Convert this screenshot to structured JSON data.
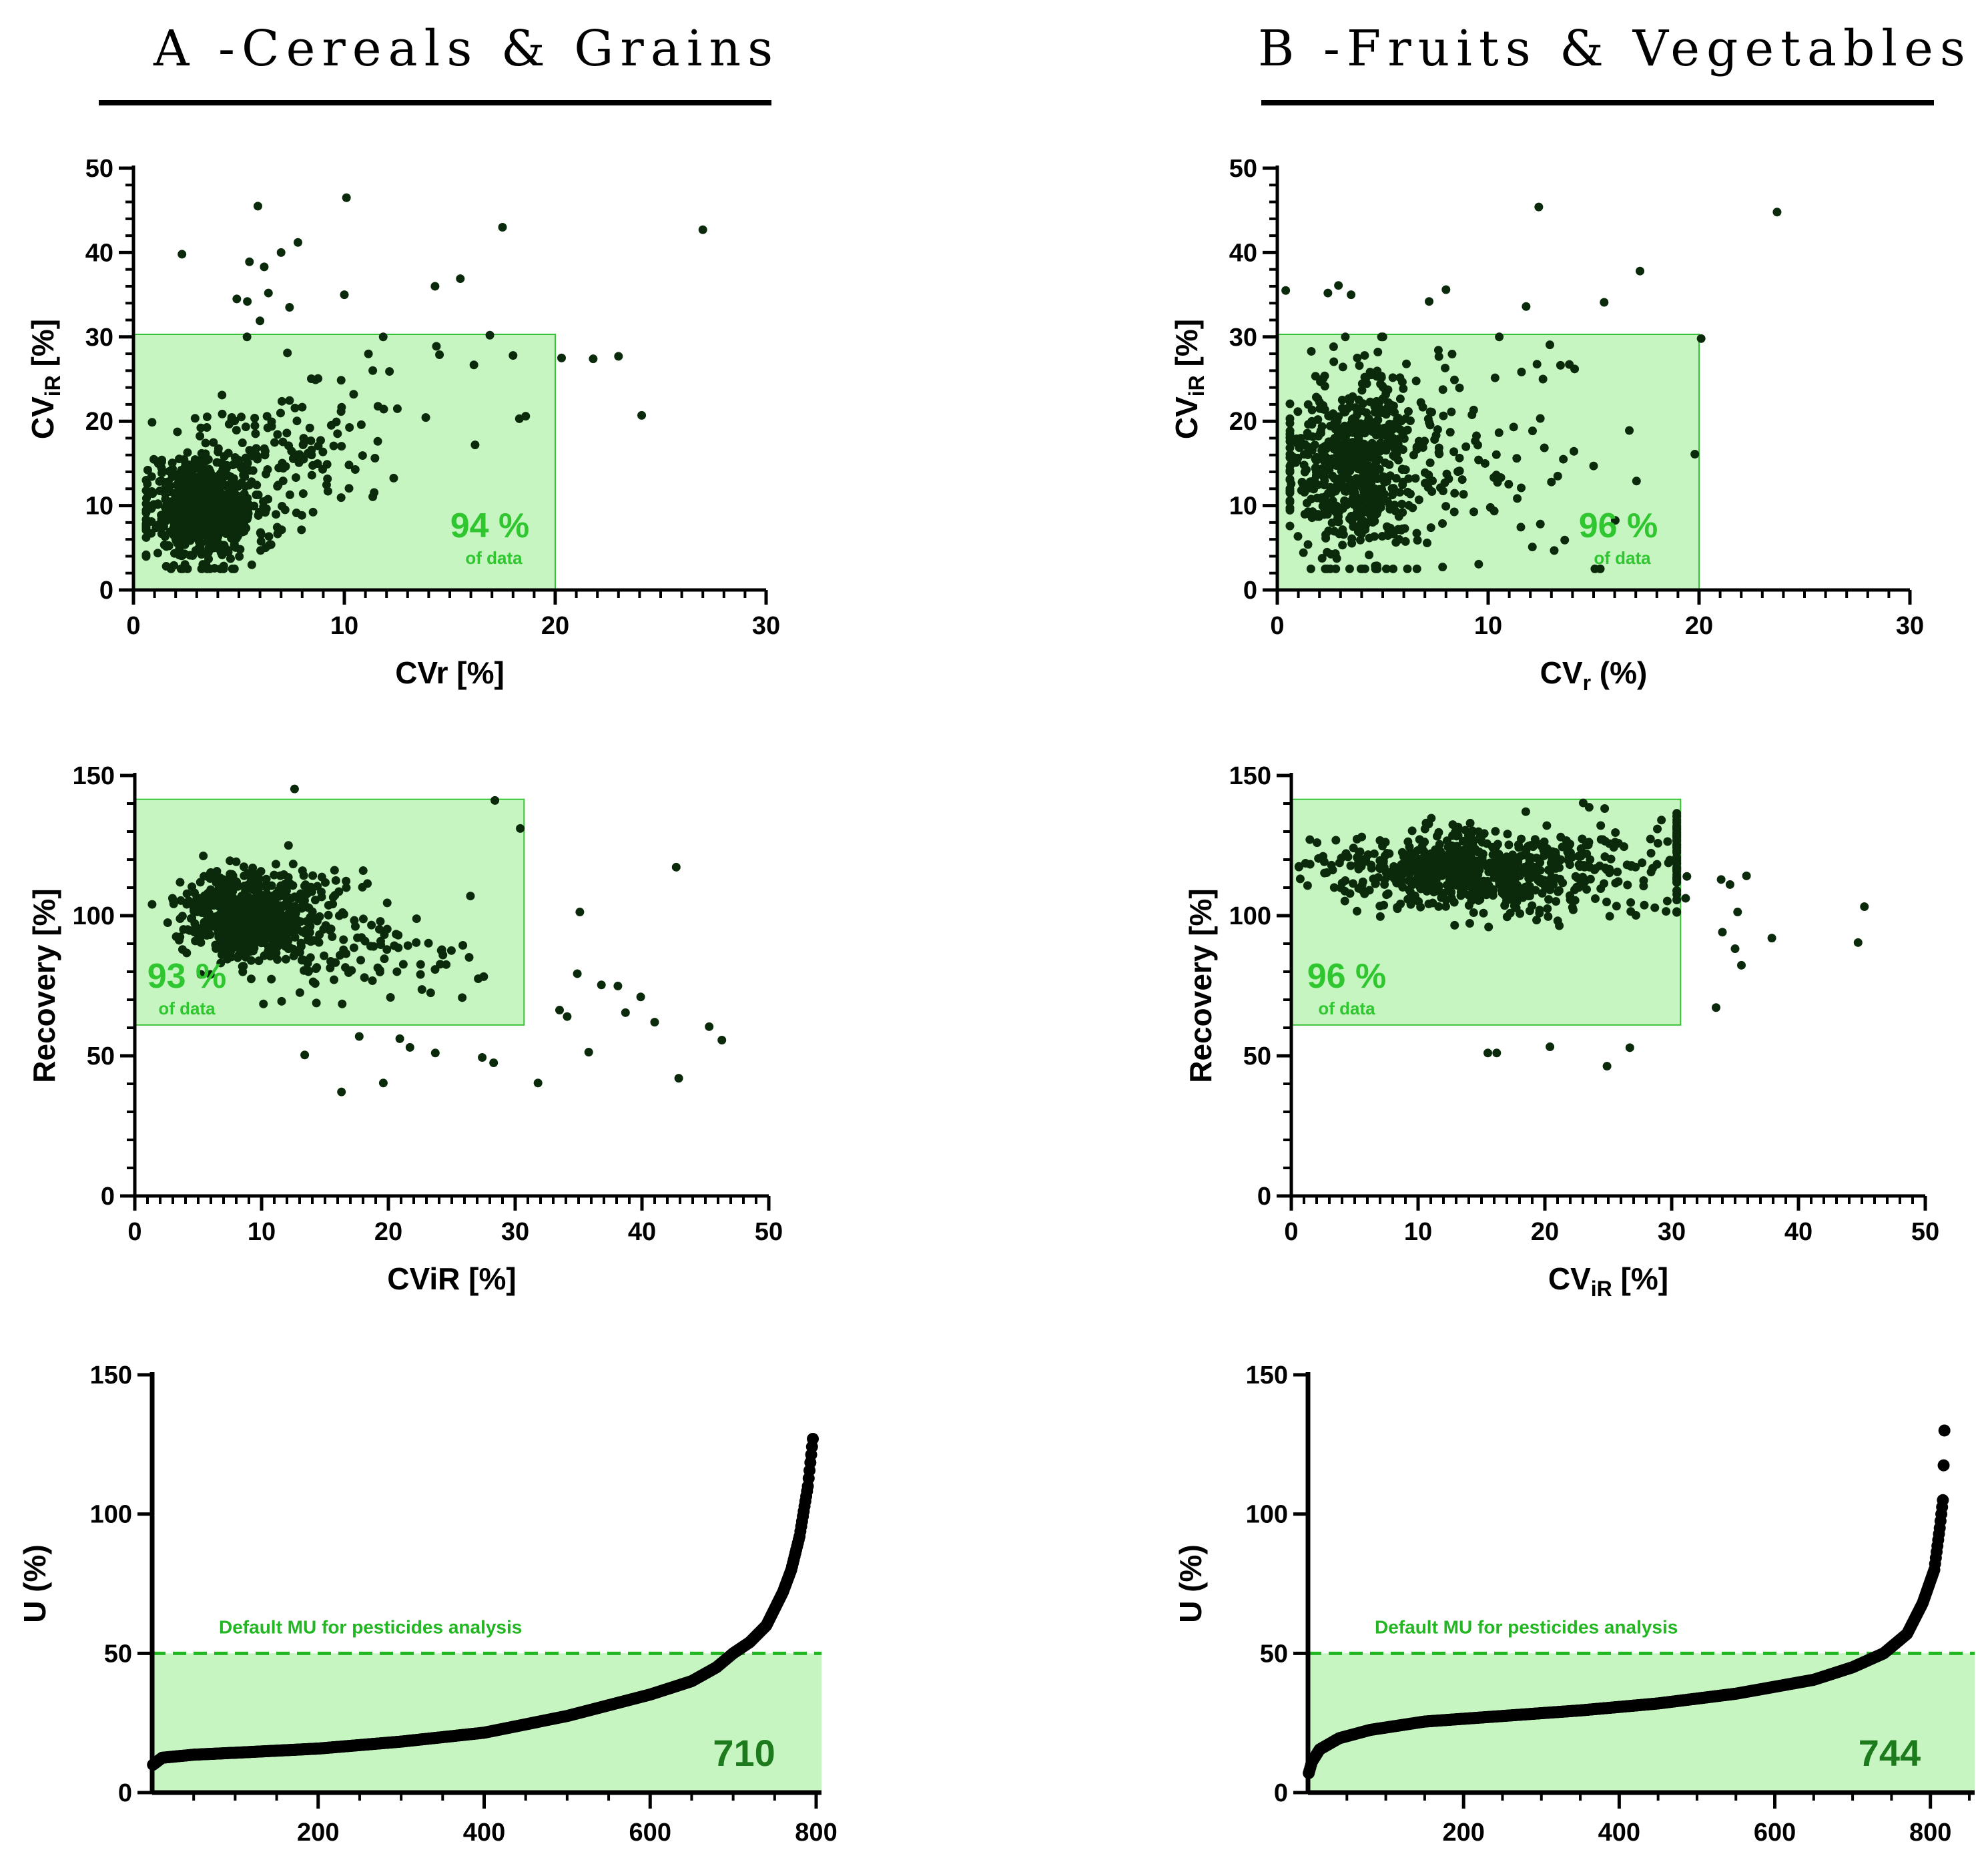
{
  "figure": {
    "col_a_title": "A -Cereals & Grains",
    "col_b_title": "B -Fruits & Vegetables"
  },
  "colors": {
    "point": "#0b2a0b",
    "region_fill": "#c6f5c1",
    "region_edge": "#38c238",
    "percent_text": "#2fc62f",
    "reference_line": "#22b622",
    "count_text": "#1d7a1d",
    "axis": "#000000"
  },
  "chart_data": [
    {
      "id": "A1",
      "type": "scatter",
      "xlabel": "CVr [%]",
      "ylabel_main": "CV",
      "ylabel_sub": "iR",
      "ylabel_tail": " [%]",
      "xlim": [
        0,
        30
      ],
      "ylim": [
        0,
        50
      ],
      "xticks": [
        0,
        10,
        20,
        30
      ],
      "yticks": [
        0,
        10,
        20,
        30,
        40,
        50
      ],
      "region": {
        "x": [
          0,
          20
        ],
        "y": [
          0,
          30.3
        ]
      },
      "percent": "94 %",
      "percent_sub": "of data",
      "cluster": {
        "x_mean": 3.2,
        "y_mean": 10,
        "x_spread": 1.3,
        "y_spread": 3.4,
        "n": 560,
        "tail_n": 200
      },
      "outliers": [
        [
          2.3,
          39.8
        ],
        [
          5.9,
          45.5
        ],
        [
          5.5,
          38.9
        ],
        [
          6.2,
          38.3
        ],
        [
          7.0,
          40.0
        ],
        [
          7.8,
          41.2
        ],
        [
          10.1,
          46.5
        ],
        [
          4.9,
          34.5
        ],
        [
          5.4,
          34.2
        ],
        [
          6.4,
          35.2
        ],
        [
          7.4,
          33.5
        ],
        [
          10.0,
          35.0
        ],
        [
          14.3,
          36.0
        ],
        [
          15.5,
          36.9
        ],
        [
          17.5,
          43.0
        ],
        [
          27.0,
          42.7
        ],
        [
          20.3,
          27.5
        ],
        [
          21.8,
          27.4
        ],
        [
          23.0,
          27.7
        ],
        [
          24.1,
          20.7
        ],
        [
          18.3,
          20.3
        ],
        [
          18.6,
          20.6
        ],
        [
          16.2,
          17.2
        ],
        [
          6.0,
          31.9
        ],
        [
          7.3,
          28.1
        ],
        [
          16.9,
          30.2
        ],
        [
          18.0,
          27.8
        ]
      ]
    },
    {
      "id": "B1",
      "type": "scatter",
      "xlabel_main": "CV",
      "xlabel_sub": "r",
      "xlabel_tail": " (%)",
      "ylabel_main": "CV",
      "ylabel_sub": "iR",
      "ylabel_tail": " [%]",
      "xlim": [
        0,
        30
      ],
      "ylim": [
        0,
        50
      ],
      "xticks": [
        0,
        10,
        20,
        30
      ],
      "yticks": [
        0,
        10,
        20,
        30,
        40,
        50
      ],
      "region": {
        "x": [
          0,
          20
        ],
        "y": [
          0,
          30.3
        ]
      },
      "percent": "96 %",
      "percent_sub": "of data",
      "cluster": {
        "x_mean": 3.3,
        "y_mean": 14.5,
        "x_spread": 1.6,
        "y_spread": 5.2,
        "n": 600,
        "tail_n": 160
      },
      "outliers": [
        [
          0.4,
          35.5
        ],
        [
          2.4,
          35.2
        ],
        [
          2.9,
          36.1
        ],
        [
          3.5,
          35.0
        ],
        [
          8.0,
          35.6
        ],
        [
          7.2,
          34.2
        ],
        [
          12.4,
          45.4
        ],
        [
          11.8,
          33.6
        ],
        [
          15.5,
          34.1
        ],
        [
          17.2,
          37.8
        ],
        [
          23.7,
          44.8
        ],
        [
          19.8,
          16.1
        ],
        [
          20.1,
          29.8
        ],
        [
          14.1,
          26.2
        ],
        [
          12.6,
          25.0
        ],
        [
          13.3,
          13.5
        ],
        [
          15.0,
          14.7
        ],
        [
          13.0,
          12.8
        ]
      ]
    },
    {
      "id": "A2",
      "type": "scatter",
      "xlabel": "CViR [%]",
      "ylabel": "Recovery [%]",
      "xlim": [
        0,
        50
      ],
      "ylim": [
        0,
        150
      ],
      "xticks": [
        0,
        10,
        20,
        30,
        40,
        50
      ],
      "yticks": [
        0,
        50,
        100,
        150
      ],
      "region": {
        "x": [
          0,
          30.7
        ],
        "y": [
          61,
          141.5
        ]
      },
      "percent": "93 %",
      "percent_sub": "of data",
      "cluster": {
        "x_mean": 8.5,
        "y_mean": 101,
        "x_spread": 2.3,
        "y_spread": 7.5,
        "n": 520,
        "tail_n": 230
      },
      "outliers": [
        [
          12.6,
          145.2
        ],
        [
          16.3,
          37.1
        ],
        [
          19.6,
          40.3
        ],
        [
          31.8,
          40.3
        ],
        [
          28.3,
          47.5
        ],
        [
          23.7,
          51.0
        ],
        [
          27.4,
          49.4
        ],
        [
          33.5,
          66.3
        ],
        [
          34.1,
          64.0
        ],
        [
          34.9,
          79.3
        ],
        [
          35.1,
          101.3
        ],
        [
          35.8,
          51.3
        ],
        [
          36.8,
          75.3
        ],
        [
          38.1,
          74.9
        ],
        [
          38.7,
          65.4
        ],
        [
          39.9,
          71.0
        ],
        [
          41.0,
          62.0
        ],
        [
          42.7,
          117.3
        ],
        [
          42.9,
          42.0
        ],
        [
          45.3,
          60.4
        ],
        [
          46.3,
          55.6
        ],
        [
          30.4,
          131.1
        ],
        [
          28.4,
          141.1
        ],
        [
          13.4,
          50.3
        ],
        [
          20.9,
          56.1
        ],
        [
          21.7,
          53.0
        ],
        [
          17.7,
          56.9
        ]
      ]
    },
    {
      "id": "B2",
      "type": "scatter",
      "xlabel_main": "CV",
      "xlabel_sub": "iR",
      "xlabel_tail": " [%]",
      "ylabel": "Recovery [%]",
      "xlim": [
        0,
        50
      ],
      "ylim": [
        0,
        150
      ],
      "xticks": [
        0,
        10,
        20,
        30,
        40,
        50
      ],
      "yticks": [
        0,
        50,
        100,
        150
      ],
      "region": {
        "x": [
          0,
          30.7
        ],
        "y": [
          61,
          141.5
        ]
      },
      "percent": "96 %",
      "percent_sub": "of data",
      "cluster": {
        "x_mean": 14,
        "y_mean": 116,
        "x_spread": 5.5,
        "y_spread": 7,
        "n": 620,
        "tail_n": 150
      },
      "outliers": [
        [
          31.2,
          114.0
        ],
        [
          31.1,
          106.2
        ],
        [
          33.5,
          67.2
        ],
        [
          33.9,
          112.9
        ],
        [
          34.0,
          94.1
        ],
        [
          34.6,
          111.1
        ],
        [
          35.0,
          88.2
        ],
        [
          35.2,
          101.3
        ],
        [
          35.5,
          82.3
        ],
        [
          35.9,
          114.2
        ],
        [
          37.9,
          92.0
        ],
        [
          44.7,
          90.4
        ],
        [
          45.2,
          103.2
        ],
        [
          24.9,
          46.3
        ],
        [
          26.7,
          52.9
        ],
        [
          20.4,
          53.2
        ],
        [
          15.5,
          51.0
        ],
        [
          16.2,
          51.0
        ]
      ]
    },
    {
      "id": "A3",
      "type": "line",
      "style": "sorted-points",
      "xlabel": "",
      "ylabel": "U (%)",
      "xlim": [
        0,
        800
      ],
      "ylim": [
        0,
        150
      ],
      "xticks": [
        200,
        400,
        600,
        800
      ],
      "yticks": [
        0,
        50,
        100,
        150
      ],
      "n": 796,
      "curve_knots": [
        [
          1,
          10
        ],
        [
          12,
          12.5
        ],
        [
          50,
          13.6
        ],
        [
          100,
          14.3
        ],
        [
          200,
          15.8
        ],
        [
          300,
          18.3
        ],
        [
          400,
          21.5
        ],
        [
          500,
          27.5
        ],
        [
          600,
          35.2
        ],
        [
          650,
          40
        ],
        [
          680,
          45
        ],
        [
          700,
          50
        ],
        [
          720,
          54
        ],
        [
          740,
          60
        ],
        [
          760,
          72
        ],
        [
          770,
          80
        ],
        [
          780,
          92
        ],
        [
          790,
          110
        ],
        [
          796,
          127
        ]
      ],
      "reference": {
        "y": 50,
        "label": "Default MU for pesticides analysis"
      },
      "count_marker": {
        "x": 710,
        "label": "710"
      }
    },
    {
      "id": "B3",
      "type": "line",
      "style": "sorted-points",
      "xlabel": "",
      "ylabel": "U (%)",
      "xlim": [
        0,
        850
      ],
      "ylim": [
        0,
        150
      ],
      "xticks": [
        200,
        400,
        600,
        800
      ],
      "yticks": [
        0,
        50,
        100,
        150
      ],
      "n": 818,
      "curve_knots": [
        [
          1,
          7
        ],
        [
          5,
          11
        ],
        [
          15,
          15.5
        ],
        [
          40,
          19.5
        ],
        [
          80,
          22.5
        ],
        [
          150,
          25.5
        ],
        [
          250,
          27.5
        ],
        [
          350,
          29.5
        ],
        [
          450,
          32
        ],
        [
          550,
          35.5
        ],
        [
          650,
          40.5
        ],
        [
          700,
          45
        ],
        [
          740,
          50
        ],
        [
          770,
          57
        ],
        [
          790,
          68
        ],
        [
          805,
          80
        ],
        [
          812,
          95
        ],
        [
          816,
          105
        ],
        [
          818,
          130
        ]
      ],
      "reference": {
        "y": 50,
        "label": "Default MU for pesticides analysis"
      },
      "count_marker": {
        "x": 744,
        "label": "744"
      }
    }
  ]
}
